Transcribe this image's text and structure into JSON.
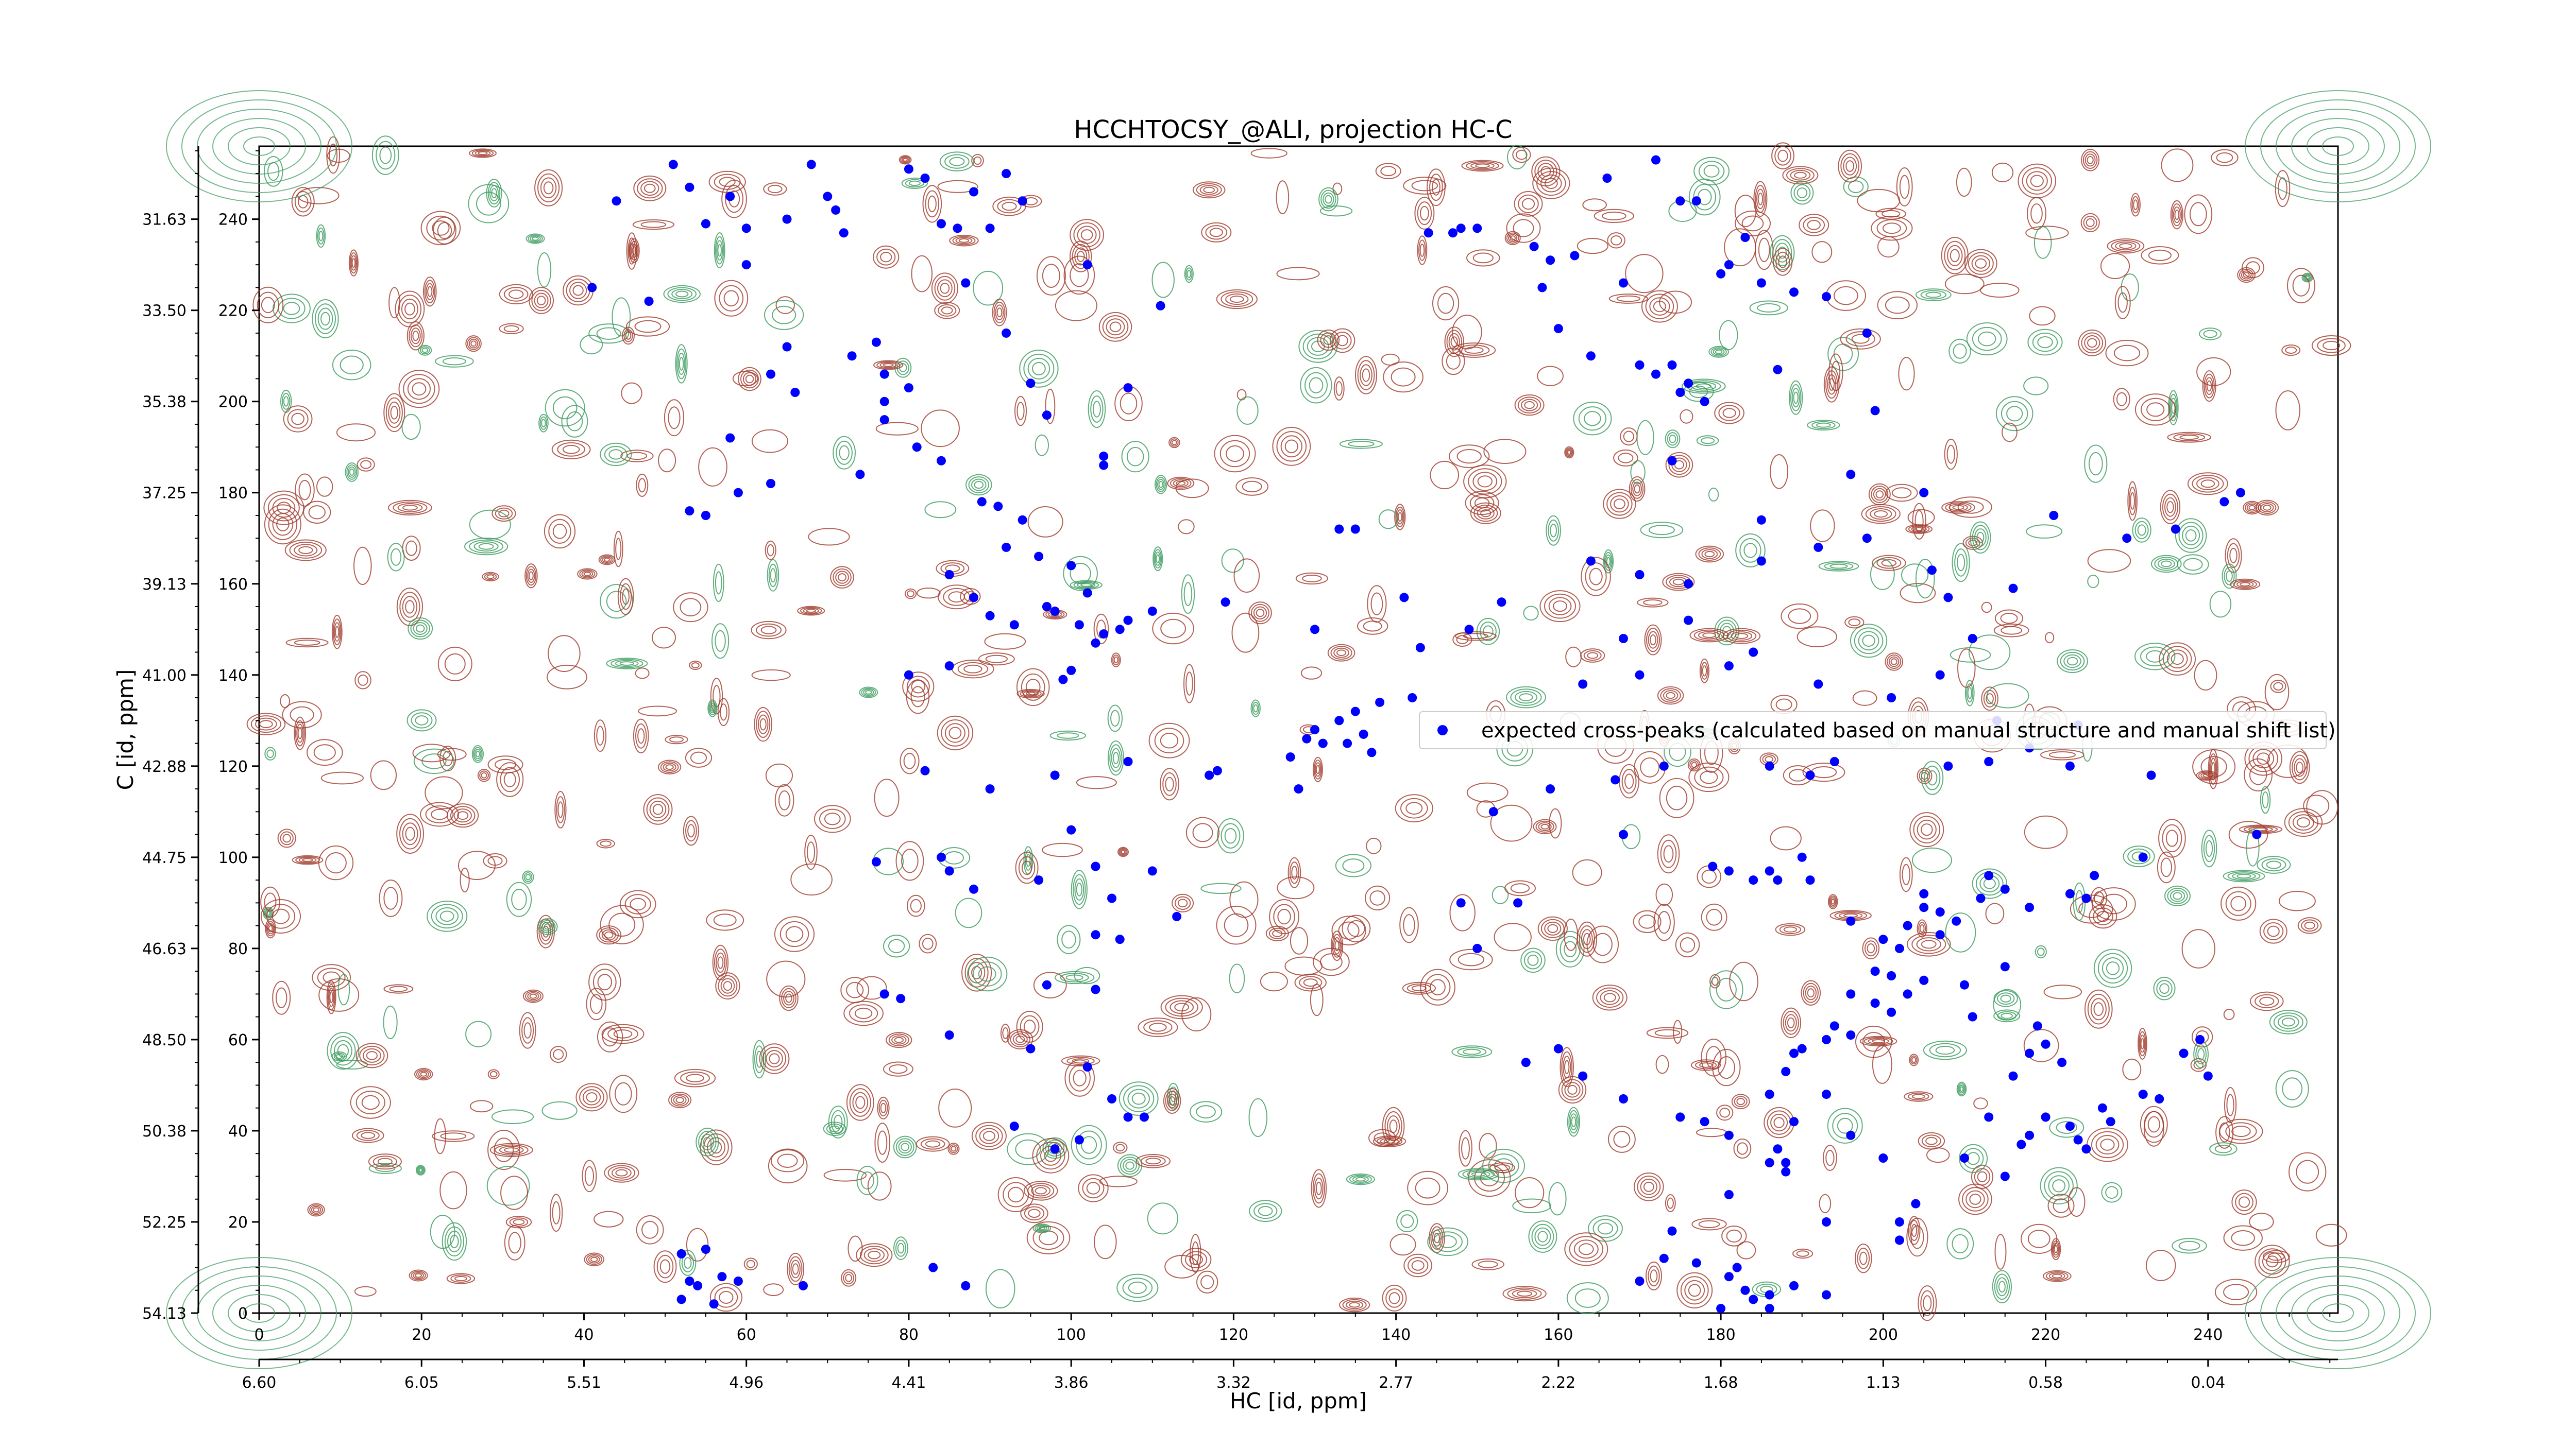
{
  "chart_data": {
    "type": "scatter",
    "title": "HCCHTOCSY_@ALI, projection HC-C",
    "xlabel": "HC [id, ppm]",
    "ylabel": "C [id, ppm]",
    "x_index_ticks": [
      "0",
      "20",
      "40",
      "60",
      "80",
      "100",
      "120",
      "140",
      "160",
      "180",
      "200",
      "220",
      "240"
    ],
    "x_index_range": [
      0,
      256
    ],
    "x_ppm_ticks": [
      "6.60",
      "6.05",
      "5.51",
      "4.96",
      "4.41",
      "3.86",
      "3.32",
      "2.77",
      "2.22",
      "1.68",
      "1.13",
      "0.58",
      "0.04"
    ],
    "y_index_ticks": [
      "0",
      "20",
      "40",
      "60",
      "80",
      "100",
      "120",
      "140",
      "160",
      "180",
      "200",
      "220",
      "240"
    ],
    "y_index_range": [
      0,
      256
    ],
    "y_ppm_ticks": [
      "54.13",
      "52.25",
      "50.38",
      "48.50",
      "46.63",
      "44.75",
      "42.88",
      "41.00",
      "39.13",
      "37.25",
      "35.38",
      "33.50",
      "31.63"
    ],
    "legend": {
      "label": "expected cross-peaks (calculated based on manual structure and manual shift list)",
      "placement": "center-right"
    },
    "colors": {
      "positive_contour": "#a0392a",
      "negative_contour": "#3a9a5c",
      "peak_marker": "#0000ff"
    },
    "series": [
      {
        "name": "expected cross-peaks (calculated based on manual structure and manual shift list)",
        "points": [
          [
            44,
            244
          ],
          [
            51,
            252
          ],
          [
            53,
            247
          ],
          [
            55,
            239
          ],
          [
            58,
            245
          ],
          [
            60,
            238
          ],
          [
            65,
            240
          ],
          [
            68,
            252
          ],
          [
            70,
            245
          ],
          [
            71,
            242
          ],
          [
            72,
            237
          ],
          [
            80,
            251
          ],
          [
            82,
            249
          ],
          [
            84,
            239
          ],
          [
            86,
            238
          ],
          [
            88,
            246
          ],
          [
            90,
            238
          ],
          [
            92,
            250
          ],
          [
            94,
            244
          ],
          [
            41,
            225
          ],
          [
            48,
            222
          ],
          [
            60,
            230
          ],
          [
            65,
            212
          ],
          [
            63,
            206
          ],
          [
            66,
            202
          ],
          [
            73,
            210
          ],
          [
            76,
            213
          ],
          [
            77,
            206
          ],
          [
            77,
            200
          ],
          [
            77,
            196
          ],
          [
            80,
            203
          ],
          [
            87,
            226
          ],
          [
            92,
            215
          ],
          [
            95,
            204
          ],
          [
            97,
            197
          ],
          [
            102,
            230
          ],
          [
            104,
            188
          ],
          [
            104,
            186
          ],
          [
            107,
            203
          ],
          [
            111,
            221
          ],
          [
            58,
            192
          ],
          [
            63,
            182
          ],
          [
            53,
            176
          ],
          [
            55,
            175
          ],
          [
            59,
            180
          ],
          [
            74,
            184
          ],
          [
            81,
            190
          ],
          [
            84,
            187
          ],
          [
            89,
            178
          ],
          [
            91,
            177
          ],
          [
            92,
            168
          ],
          [
            94,
            174
          ],
          [
            96,
            166
          ],
          [
            85,
            162
          ],
          [
            88,
            157
          ],
          [
            90,
            153
          ],
          [
            93,
            151
          ],
          [
            100,
            164
          ],
          [
            102,
            158
          ],
          [
            97,
            155
          ],
          [
            98,
            154
          ],
          [
            101,
            151
          ],
          [
            103,
            147
          ],
          [
            104,
            149
          ],
          [
            106,
            150
          ],
          [
            107,
            152
          ],
          [
            110,
            154
          ],
          [
            100,
            141
          ],
          [
            99,
            139
          ],
          [
            80,
            140
          ],
          [
            85,
            142
          ],
          [
            82,
            119
          ],
          [
            90,
            115
          ],
          [
            98,
            118
          ],
          [
            107,
            121
          ],
          [
            118,
            119
          ],
          [
            127,
            122
          ],
          [
            130,
            128
          ],
          [
            129,
            126
          ],
          [
            131,
            125
          ],
          [
            134,
            125
          ],
          [
            136,
            127
          ],
          [
            137,
            123
          ],
          [
            133,
            130
          ],
          [
            135,
            132
          ],
          [
            138,
            134
          ],
          [
            141,
            157
          ],
          [
            142,
            135
          ],
          [
            130,
            150
          ],
          [
            119,
            156
          ],
          [
            133,
            172
          ],
          [
            135,
            172
          ],
          [
            144,
            237
          ],
          [
            147,
            237
          ],
          [
            148,
            238
          ],
          [
            150,
            238
          ],
          [
            157,
            234
          ],
          [
            158,
            225
          ],
          [
            159,
            231
          ],
          [
            162,
            232
          ],
          [
            160,
            216
          ],
          [
            164,
            210
          ],
          [
            166,
            249
          ],
          [
            168,
            226
          ],
          [
            172,
            253
          ],
          [
            175,
            244
          ],
          [
            177,
            244
          ],
          [
            180,
            228
          ],
          [
            181,
            230
          ],
          [
            183,
            236
          ],
          [
            185,
            226
          ],
          [
            189,
            224
          ],
          [
            193,
            223
          ],
          [
            198,
            215
          ],
          [
            170,
            208
          ],
          [
            172,
            206
          ],
          [
            174,
            208
          ],
          [
            176,
            204
          ],
          [
            175,
            202
          ],
          [
            178,
            200
          ],
          [
            187,
            207
          ],
          [
            76,
            99
          ],
          [
            84,
            100
          ],
          [
            85,
            97
          ],
          [
            88,
            93
          ],
          [
            96,
            95
          ],
          [
            100,
            106
          ],
          [
            103,
            98
          ],
          [
            105,
            91
          ],
          [
            110,
            97
          ],
          [
            113,
            87
          ],
          [
            103,
            83
          ],
          [
            106,
            82
          ],
          [
            97,
            72
          ],
          [
            103,
            71
          ],
          [
            95,
            58
          ],
          [
            102,
            54
          ],
          [
            105,
            47
          ],
          [
            107,
            43
          ],
          [
            109,
            43
          ],
          [
            93,
            41
          ],
          [
            98,
            36
          ],
          [
            101,
            38
          ],
          [
            77,
            70
          ],
          [
            79,
            69
          ],
          [
            85,
            61
          ],
          [
            117,
            118
          ],
          [
            128,
            115
          ],
          [
            148,
            90
          ],
          [
            150,
            80
          ],
          [
            155,
            90
          ],
          [
            156,
            55
          ],
          [
            160,
            58
          ],
          [
            163,
            52
          ],
          [
            168,
            47
          ],
          [
            175,
            43
          ],
          [
            178,
            42
          ],
          [
            181,
            39
          ],
          [
            186,
            33
          ],
          [
            187,
            36
          ],
          [
            188,
            33
          ],
          [
            188,
            31
          ],
          [
            193,
            20
          ],
          [
            181,
            26
          ],
          [
            174,
            18
          ],
          [
            173,
            12
          ],
          [
            170,
            7
          ],
          [
            181,
            8
          ],
          [
            182,
            10
          ],
          [
            183,
            5
          ],
          [
            184,
            3
          ],
          [
            186,
            4
          ],
          [
            186,
            1
          ],
          [
            180,
            1
          ],
          [
            177,
            11
          ],
          [
            189,
            6
          ],
          [
            193,
            4
          ],
          [
            202,
            16
          ],
          [
            202,
            20
          ],
          [
            204,
            24
          ],
          [
            179,
            98
          ],
          [
            181,
            97
          ],
          [
            184,
            95
          ],
          [
            186,
            97
          ],
          [
            187,
            95
          ],
          [
            190,
            100
          ],
          [
            191,
            95
          ],
          [
            196,
            86
          ],
          [
            200,
            82
          ],
          [
            202,
            80
          ],
          [
            203,
            85
          ],
          [
            205,
            92
          ],
          [
            205,
            89
          ],
          [
            207,
            88
          ],
          [
            209,
            86
          ],
          [
            207,
            83
          ],
          [
            212,
            91
          ],
          [
            215,
            93
          ],
          [
            213,
            96
          ],
          [
            218,
            89
          ],
          [
            225,
            91
          ],
          [
            223,
            92
          ],
          [
            226,
            96
          ],
          [
            232,
            100
          ],
          [
            246,
            105
          ],
          [
            196,
            70
          ],
          [
            199,
            68
          ],
          [
            193,
            60
          ],
          [
            194,
            63
          ],
          [
            196,
            61
          ],
          [
            201,
            66
          ],
          [
            189,
            57
          ],
          [
            190,
            58
          ],
          [
            188,
            53
          ],
          [
            193,
            48
          ],
          [
            186,
            48
          ],
          [
            189,
            42
          ],
          [
            196,
            39
          ],
          [
            200,
            34
          ],
          [
            210,
            34
          ],
          [
            213,
            43
          ],
          [
            216,
            52
          ],
          [
            218,
            57
          ],
          [
            219,
            63
          ],
          [
            220,
            59
          ],
          [
            222,
            55
          ],
          [
            220,
            43
          ],
          [
            223,
            41
          ],
          [
            224,
            38
          ],
          [
            225,
            36
          ],
          [
            217,
            37
          ],
          [
            218,
            39
          ],
          [
            215,
            30
          ],
          [
            227,
            45
          ],
          [
            228,
            42
          ],
          [
            232,
            48
          ],
          [
            234,
            47
          ],
          [
            237,
            57
          ],
          [
            240,
            52
          ],
          [
            239,
            60
          ],
          [
            199,
            75
          ],
          [
            201,
            74
          ],
          [
            205,
            73
          ],
          [
            203,
            70
          ],
          [
            210,
            72
          ],
          [
            215,
            76
          ],
          [
            211,
            65
          ],
          [
            208,
            120
          ],
          [
            213,
            121
          ],
          [
            214,
            130
          ],
          [
            223,
            120
          ],
          [
            233,
            118
          ],
          [
            218,
            124
          ],
          [
            224,
            129
          ],
          [
            208,
            157
          ],
          [
            216,
            159
          ],
          [
            221,
            175
          ],
          [
            230,
            170
          ],
          [
            236,
            172
          ],
          [
            242,
            178
          ],
          [
            244,
            180
          ],
          [
            198,
            170
          ],
          [
            206,
            163
          ],
          [
            211,
            148
          ],
          [
            207,
            140
          ],
          [
            201,
            135
          ],
          [
            192,
            138
          ],
          [
            181,
            142
          ],
          [
            184,
            145
          ],
          [
            186,
            120
          ],
          [
            191,
            118
          ],
          [
            194,
            121
          ],
          [
            173,
            120
          ],
          [
            167,
            117
          ],
          [
            159,
            115
          ],
          [
            152,
            110
          ],
          [
            168,
            105
          ],
          [
            170,
            140
          ],
          [
            163,
            138
          ],
          [
            168,
            148
          ],
          [
            176,
            152
          ],
          [
            185,
            165
          ],
          [
            192,
            168
          ],
          [
            170,
            162
          ],
          [
            176,
            160
          ],
          [
            164,
            165
          ],
          [
            174,
            187
          ],
          [
            185,
            174
          ],
          [
            196,
            184
          ],
          [
            205,
            180
          ],
          [
            199,
            198
          ],
          [
            149,
            150
          ],
          [
            143,
            146
          ],
          [
            153,
            156
          ],
          [
            59,
            7
          ],
          [
            55,
            14
          ],
          [
            52,
            13
          ],
          [
            56,
            2
          ],
          [
            57,
            8
          ],
          [
            67,
            6
          ],
          [
            83,
            10
          ],
          [
            87,
            6
          ],
          [
            52,
            3
          ],
          [
            53,
            7
          ],
          [
            54,
            6
          ]
        ]
      }
    ]
  }
}
